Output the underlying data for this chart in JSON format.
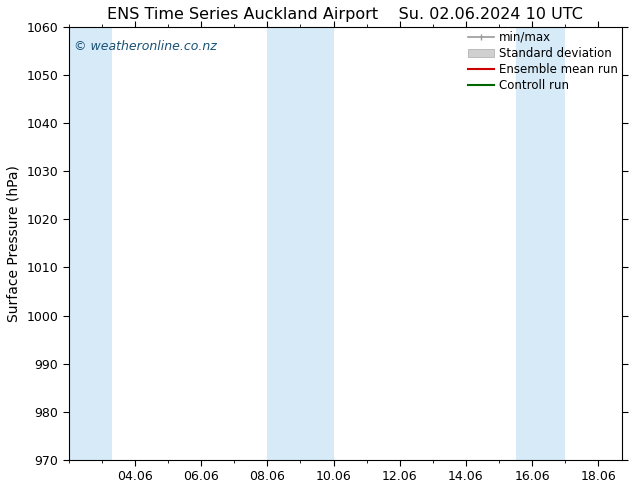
{
  "title_left": "ENS Time Series Auckland Airport",
  "title_right": "Su. 02.06.2024 10 UTC",
  "ylabel": "Surface Pressure (hPa)",
  "ylim": [
    970,
    1060
  ],
  "yticks": [
    970,
    980,
    990,
    1000,
    1010,
    1020,
    1030,
    1040,
    1050,
    1060
  ],
  "xlim_start": 2.0,
  "xlim_end": 18.7,
  "xtick_labels": [
    "04.06",
    "06.06",
    "08.06",
    "10.06",
    "12.06",
    "14.06",
    "16.06",
    "18.06"
  ],
  "xtick_positions": [
    4.0,
    6.0,
    8.0,
    10.0,
    12.0,
    14.0,
    16.0,
    18.0
  ],
  "shaded_bands": [
    {
      "x_start": 2.0,
      "x_end": 3.3,
      "color": "#d6eaf8"
    },
    {
      "x_start": 8.0,
      "x_end": 10.0,
      "color": "#d6eaf8"
    },
    {
      "x_start": 15.5,
      "x_end": 17.0,
      "color": "#d6eaf8"
    }
  ],
  "watermark": "© weatheronline.co.nz",
  "watermark_color": "#1a5276",
  "legend_labels": [
    "min/max",
    "Standard deviation",
    "Ensemble mean run",
    "Controll run"
  ],
  "legend_colors_line": [
    "#999999",
    "#cccccc",
    "#cc0000",
    "#006600"
  ],
  "background_color": "#ffffff",
  "plot_bg_color": "#ffffff",
  "title_fontsize": 11.5,
  "axis_label_fontsize": 10,
  "tick_fontsize": 9,
  "legend_fontsize": 8.5,
  "watermark_fontsize": 9
}
